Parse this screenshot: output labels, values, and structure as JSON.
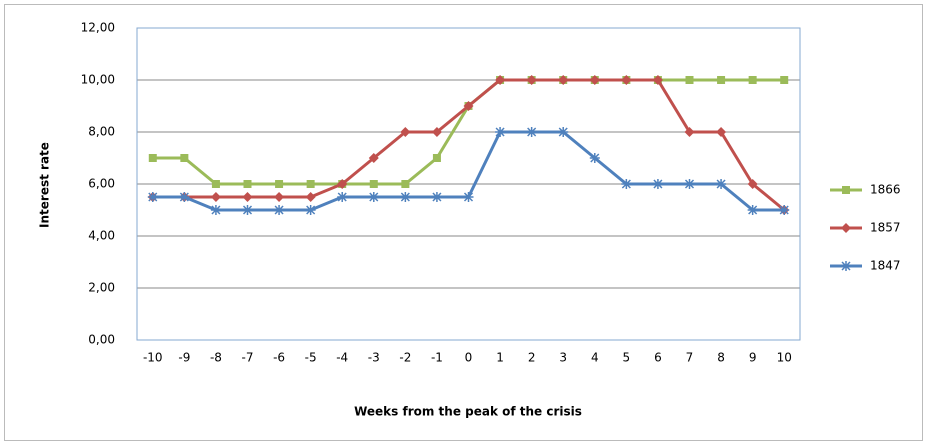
{
  "chart_data": {
    "type": "line",
    "x": [
      -10,
      -9,
      -8,
      -7,
      -6,
      -5,
      -4,
      -3,
      -2,
      -1,
      0,
      1,
      2,
      3,
      4,
      5,
      6,
      7,
      8,
      9,
      10
    ],
    "xlim": [
      -10.5,
      10.5
    ],
    "xlabel": "Weeks from the peak of the crisis",
    "ylabel": "Interest rate",
    "ylim": [
      0,
      12
    ],
    "yticks": [
      {
        "value": 0,
        "label": "0,00"
      },
      {
        "value": 2,
        "label": "2,00"
      },
      {
        "value": 4,
        "label": "4,00"
      },
      {
        "value": 6,
        "label": "6,00"
      },
      {
        "value": 8,
        "label": "8,00"
      },
      {
        "value": 10,
        "label": "10,00"
      },
      {
        "value": 12,
        "label": "12,00"
      }
    ],
    "grid": true,
    "legend": "right",
    "series": [
      {
        "name": "1866",
        "color": "#9bbb59",
        "marker": "square",
        "values": [
          7,
          7,
          6,
          6,
          6,
          6,
          6,
          6,
          6,
          7,
          9,
          10,
          10,
          10,
          10,
          10,
          10,
          10,
          10,
          10,
          10
        ]
      },
      {
        "name": "1857",
        "color": "#c0504d",
        "marker": "diamond",
        "values": [
          5.5,
          5.5,
          5.5,
          5.5,
          5.5,
          5.5,
          6,
          7,
          8,
          8,
          9,
          10,
          10,
          10,
          10,
          10,
          10,
          8,
          8,
          6,
          5
        ]
      },
      {
        "name": "1847",
        "color": "#4f81bd",
        "marker": "star",
        "values": [
          5.5,
          5.5,
          5,
          5,
          5,
          5,
          5.5,
          5.5,
          5.5,
          5.5,
          5.5,
          8,
          8,
          8,
          7,
          6,
          6,
          6,
          6,
          5,
          5
        ]
      }
    ]
  }
}
